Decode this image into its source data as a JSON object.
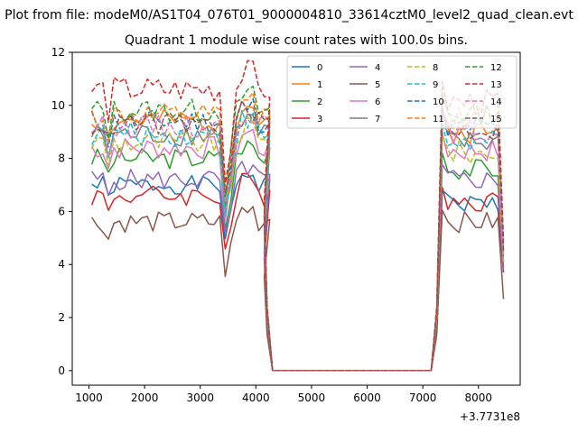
{
  "figure": {
    "suptitle": "Plot from file: modeM0/AS1T04_076T01_9000004810_33614cztM0_level2_quad_clean.evt",
    "offset_label": "+3.7731e8"
  },
  "chart_data": {
    "type": "line",
    "title": "Quadrant 1 module wise count rates with 100.0s bins.",
    "xlabel": "",
    "ylabel": "",
    "xlim": [
      700,
      8750
    ],
    "ylim": [
      -0.55,
      12.0
    ],
    "xticks": [
      1000,
      2000,
      3000,
      4000,
      5000,
      6000,
      7000,
      8000
    ],
    "xtick_labels": [
      "1000",
      "2000",
      "3000",
      "4000",
      "5000",
      "6000",
      "7000",
      "8000"
    ],
    "yticks": [
      0,
      2,
      4,
      6,
      8,
      10,
      12
    ],
    "ytick_labels": [
      "0",
      "2",
      "4",
      "6",
      "8",
      "10",
      "12"
    ],
    "legend_position": "top-right",
    "legend_columns": 4,
    "x_time": {
      "early_start": 1050,
      "early_step": 100,
      "early_count": 33,
      "late_start": 7250,
      "late_step": 100,
      "late_count": 12,
      "drop": [
        4150,
        4250
      ],
      "flat": [
        4300,
        7150
      ],
      "rise": [
        7150,
        7250
      ]
    },
    "drop_profile": [
      0.62,
      0.24,
      0.0
    ],
    "rise_profile": [
      0.0,
      0.24
    ],
    "series": [
      {
        "name": "0",
        "color": "#1f77b4",
        "dash": false,
        "level": 7.0,
        "spread": 0.35,
        "early_end": 7.2,
        "late_level": 6.3,
        "late_last": 3.7,
        "seed": 1
      },
      {
        "name": "1",
        "color": "#ff7f0e",
        "dash": false,
        "level": 9.4,
        "spread": 0.45,
        "early_end": 9.6,
        "late_level": 9.0,
        "late_last": 4.5,
        "seed": 2
      },
      {
        "name": "2",
        "color": "#2ca02c",
        "dash": false,
        "level": 8.0,
        "spread": 0.4,
        "early_end": 8.4,
        "late_level": 7.6,
        "late_last": 3.9,
        "seed": 3
      },
      {
        "name": "3",
        "color": "#d62728",
        "dash": false,
        "level": 6.6,
        "spread": 0.4,
        "early_end": 6.8,
        "late_level": 6.4,
        "late_last": 3.7,
        "seed": 4
      },
      {
        "name": "4",
        "color": "#9467bd",
        "dash": false,
        "level": 7.2,
        "spread": 0.4,
        "early_end": 7.4,
        "late_level": 7.2,
        "late_last": 3.8,
        "seed": 5
      },
      {
        "name": "5",
        "color": "#8c564b",
        "dash": false,
        "level": 5.6,
        "spread": 0.4,
        "early_end": 5.7,
        "late_level": 5.6,
        "late_last": 2.7,
        "seed": 6
      },
      {
        "name": "6",
        "color": "#e377c2",
        "dash": false,
        "level": 8.4,
        "spread": 0.45,
        "early_end": 8.7,
        "late_level": 8.3,
        "late_last": 4.1,
        "seed": 7
      },
      {
        "name": "7",
        "color": "#7f7f7f",
        "dash": false,
        "level": 8.9,
        "spread": 0.45,
        "early_end": 9.2,
        "late_level": 8.6,
        "late_last": 4.3,
        "seed": 8
      },
      {
        "name": "8",
        "color": "#bcbd22",
        "dash": true,
        "level": 8.6,
        "spread": 0.45,
        "early_end": 9.0,
        "late_level": 8.2,
        "late_last": 4.1,
        "seed": 9
      },
      {
        "name": "9",
        "color": "#17becf",
        "dash": true,
        "level": 8.9,
        "spread": 0.45,
        "early_end": 9.0,
        "late_level": 8.6,
        "late_last": 4.4,
        "seed": 10
      },
      {
        "name": "10",
        "color": "#1f77b4",
        "dash": true,
        "level": 9.4,
        "spread": 0.45,
        "early_end": 9.4,
        "late_level": 9.2,
        "late_last": 4.6,
        "seed": 11
      },
      {
        "name": "11",
        "color": "#ff7f0e",
        "dash": true,
        "level": 9.6,
        "spread": 0.45,
        "early_end": 9.8,
        "late_level": 9.5,
        "late_last": 4.7,
        "seed": 12
      },
      {
        "name": "12",
        "color": "#2ca02c",
        "dash": true,
        "level": 9.8,
        "spread": 0.45,
        "early_end": 9.9,
        "late_level": 9.7,
        "late_last": 4.7,
        "seed": 13
      },
      {
        "name": "13",
        "color": "#d62728",
        "dash": true,
        "level": 10.6,
        "spread": 0.5,
        "early_end": 10.3,
        "late_level": 10.1,
        "late_last": 4.9,
        "seed": 14
      },
      {
        "name": "14",
        "color": "#e377c2",
        "dash": true,
        "level": 9.2,
        "spread": 0.45,
        "early_end": 9.4,
        "late_level": 9.0,
        "late_last": 4.4,
        "seed": 15
      },
      {
        "name": "15",
        "color": "#8c564b",
        "dash": true,
        "level": 9.3,
        "spread": 0.45,
        "early_end": 9.5,
        "late_level": 9.1,
        "late_last": 4.5,
        "seed": 16
      }
    ]
  }
}
